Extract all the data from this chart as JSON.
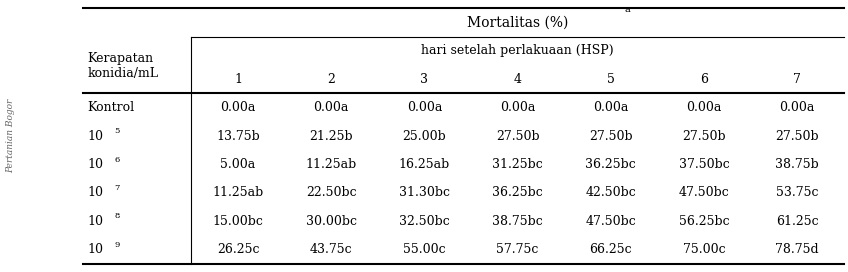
{
  "title": "Mortalitas (%)",
  "title_superscript": "a",
  "subheader": "hari setelah perlakuaan (HSP)",
  "col1_header_line1": "Kerapatan",
  "col1_header_line2": "konidia/mL",
  "day_cols": [
    "1",
    "2",
    "3",
    "4",
    "5",
    "6",
    "7"
  ],
  "rows": [
    {
      "label": "Kontrol",
      "sup": "",
      "values": [
        "0.00a",
        "0.00a",
        "0.00a",
        "0.00a",
        "0.00a",
        "0.00a",
        "0.00a"
      ]
    },
    {
      "label": "10",
      "sup": "5",
      "values": [
        "13.75b",
        "21.25b",
        "25.00b",
        "27.50b",
        "27.50b",
        "27.50b",
        "27.50b"
      ]
    },
    {
      "label": "10",
      "sup": "6",
      "values": [
        "5.00a",
        "11.25ab",
        "16.25ab",
        "31.25bc",
        "36.25bc",
        "37.50bc",
        "38.75b"
      ]
    },
    {
      "label": "10",
      "sup": "7",
      "values": [
        "11.25ab",
        "22.50bc",
        "31.30bc",
        "36.25bc",
        "42.50bc",
        "47.50bc",
        "53.75c"
      ]
    },
    {
      "label": "10",
      "sup": "8",
      "values": [
        "15.00bc",
        "30.00bc",
        "32.50bc",
        "38.75bc",
        "47.50bc",
        "56.25bc",
        "61.25c"
      ]
    },
    {
      "label": "10",
      "sup": "9",
      "values": [
        "26.25c",
        "43.75c",
        "55.00c",
        "57.75c",
        "66.25c",
        "75.00c",
        "78.75d"
      ]
    }
  ],
  "sidebar_text": "Pertanian Bogor",
  "bg_color": "#ffffff",
  "text_color": "#000000",
  "font_size": 9,
  "header_font_size": 9
}
